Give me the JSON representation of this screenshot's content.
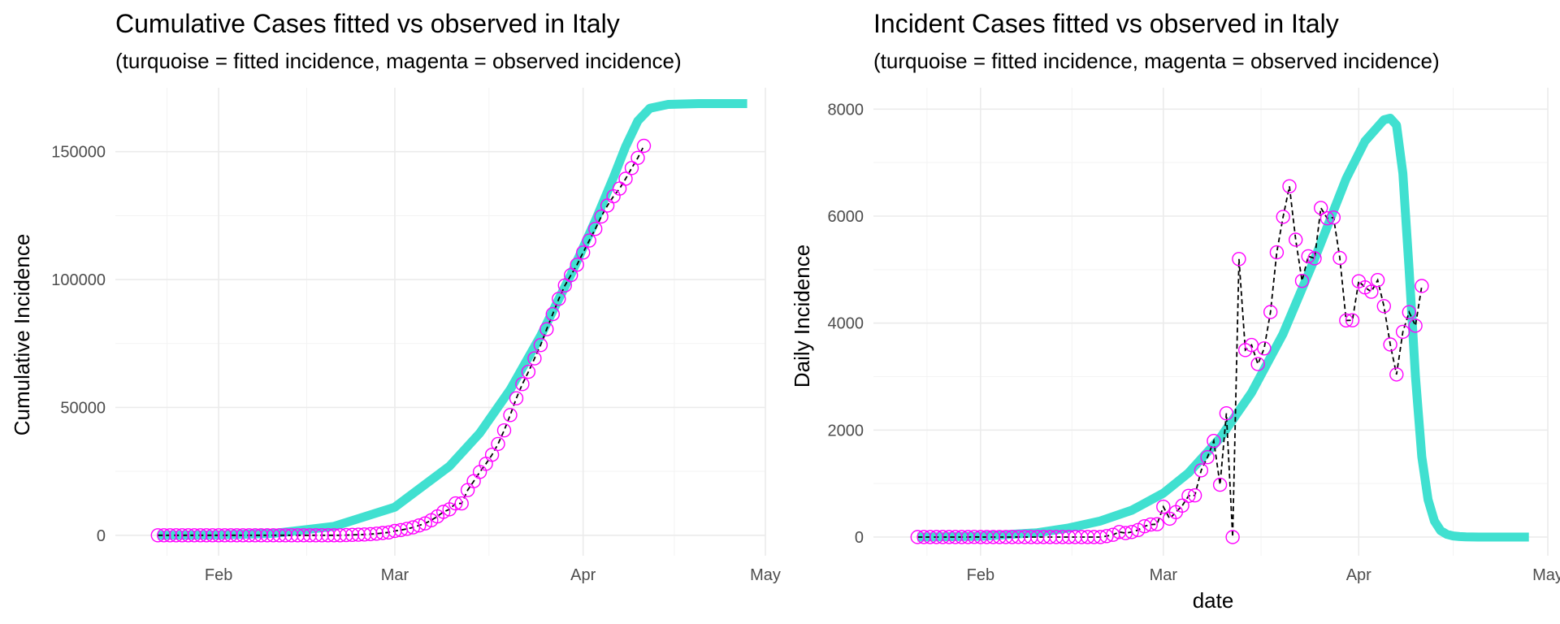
{
  "chart_data": [
    {
      "type": "line",
      "title": "Cumulative Cases fitted vs observed in Italy",
      "subtitle": "(turquoise = fitted incidence, magenta = observed incidence)",
      "xlabel": "",
      "ylabel": "Cumulative Incidence",
      "x_ticks": [
        "Feb",
        "Mar",
        "Apr",
        "May"
      ],
      "y_ticks": [
        "0",
        "50000",
        "100000",
        "150000"
      ],
      "ylim": [
        -8000,
        175000
      ],
      "xlim": [
        "2020-01-15",
        "2020-05-01"
      ],
      "grid": true,
      "colors": {
        "fitted": "#40e0d0",
        "observed": "#ff00ff",
        "connector": "#000000"
      },
      "series": [
        {
          "role": "fitted",
          "x": [
            "2020-01-22",
            "2020-02-01",
            "2020-02-10",
            "2020-02-20",
            "2020-03-01",
            "2020-03-10",
            "2020-03-15",
            "2020-03-20",
            "2020-03-25",
            "2020-03-30",
            "2020-04-03",
            "2020-04-06",
            "2020-04-08",
            "2020-04-10",
            "2020-04-12",
            "2020-04-15",
            "2020-04-20",
            "2020-04-28"
          ],
          "values": [
            0,
            120,
            700,
            3500,
            11000,
            27000,
            40000,
            57000,
            78000,
            102000,
            123000,
            140000,
            152000,
            162000,
            167000,
            168500,
            168800,
            168800
          ]
        },
        {
          "role": "observed",
          "x": [
            "2020-01-22",
            "2020-01-23",
            "2020-01-24",
            "2020-01-25",
            "2020-01-26",
            "2020-01-27",
            "2020-01-28",
            "2020-01-29",
            "2020-01-30",
            "2020-01-31",
            "2020-02-01",
            "2020-02-02",
            "2020-02-03",
            "2020-02-04",
            "2020-02-05",
            "2020-02-06",
            "2020-02-07",
            "2020-02-08",
            "2020-02-09",
            "2020-02-10",
            "2020-02-11",
            "2020-02-12",
            "2020-02-13",
            "2020-02-14",
            "2020-02-15",
            "2020-02-16",
            "2020-02-17",
            "2020-02-18",
            "2020-02-19",
            "2020-02-20",
            "2020-02-21",
            "2020-02-22",
            "2020-02-23",
            "2020-02-24",
            "2020-02-25",
            "2020-02-26",
            "2020-02-27",
            "2020-02-28",
            "2020-02-29",
            "2020-03-01",
            "2020-03-02",
            "2020-03-03",
            "2020-03-04",
            "2020-03-05",
            "2020-03-06",
            "2020-03-07",
            "2020-03-08",
            "2020-03-09",
            "2020-03-10",
            "2020-03-11",
            "2020-03-12",
            "2020-03-13",
            "2020-03-14",
            "2020-03-15",
            "2020-03-16",
            "2020-03-17",
            "2020-03-18",
            "2020-03-19",
            "2020-03-20",
            "2020-03-21",
            "2020-03-22",
            "2020-03-23",
            "2020-03-24",
            "2020-03-25",
            "2020-03-26",
            "2020-03-27",
            "2020-03-28",
            "2020-03-29",
            "2020-03-30",
            "2020-03-31",
            "2020-04-01",
            "2020-04-02",
            "2020-04-03",
            "2020-04-04",
            "2020-04-05",
            "2020-04-06",
            "2020-04-07",
            "2020-04-08",
            "2020-04-09",
            "2020-04-10",
            "2020-04-11"
          ],
          "values": [
            0,
            0,
            0,
            0,
            0,
            0,
            0,
            0,
            0,
            2,
            2,
            2,
            2,
            2,
            2,
            2,
            3,
            3,
            3,
            3,
            3,
            3,
            3,
            3,
            3,
            3,
            3,
            3,
            3,
            3,
            20,
            62,
            155,
            229,
            322,
            453,
            655,
            888,
            1128,
            1694,
            2036,
            2502,
            3089,
            3858,
            4636,
            5883,
            7375,
            9172,
            10149,
            12462,
            12462,
            17660,
            21157,
            24747,
            27980,
            31506,
            35713,
            41035,
            47021,
            53578,
            59138,
            63927,
            69176,
            74386,
            80589,
            86498,
            92472,
            97689,
            101739,
            105792,
            110574,
            115242,
            119827,
            124632,
            128948,
            132547,
            135586,
            139422,
            143626,
            147577,
            152271
          ]
        }
      ]
    },
    {
      "type": "line",
      "title": "Incident Cases fitted vs observed in Italy",
      "subtitle": "(turquoise = fitted incidence, magenta = observed incidence)",
      "xlabel": "date",
      "ylabel": "Daily Incidence",
      "x_ticks": [
        "Feb",
        "Mar",
        "Apr",
        "May"
      ],
      "y_ticks": [
        "0",
        "2000",
        "4000",
        "6000",
        "8000"
      ],
      "ylim": [
        -350,
        8400
      ],
      "xlim": [
        "2020-01-15",
        "2020-05-01"
      ],
      "grid": true,
      "colors": {
        "fitted": "#40e0d0",
        "observed": "#ff00ff",
        "connector": "#000000"
      },
      "series": [
        {
          "role": "fitted",
          "x": [
            "2020-01-22",
            "2020-02-01",
            "2020-02-10",
            "2020-02-15",
            "2020-02-20",
            "2020-02-25",
            "2020-03-01",
            "2020-03-05",
            "2020-03-10",
            "2020-03-15",
            "2020-03-20",
            "2020-03-25",
            "2020-03-30",
            "2020-04-02",
            "2020-04-05",
            "2020-04-06",
            "2020-04-07",
            "2020-04-08",
            "2020-04-09",
            "2020-04-10",
            "2020-04-11",
            "2020-04-12",
            "2020-04-13",
            "2020-04-14",
            "2020-04-15",
            "2020-04-16",
            "2020-04-17",
            "2020-04-18",
            "2020-04-19",
            "2020-04-20",
            "2020-04-22",
            "2020-04-28"
          ],
          "values": [
            0,
            15,
            80,
            170,
            300,
            500,
            820,
            1200,
            1850,
            2700,
            3800,
            5200,
            6700,
            7400,
            7800,
            7830,
            7700,
            6800,
            5000,
            3000,
            1500,
            700,
            300,
            120,
            50,
            20,
            8,
            3,
            1,
            0,
            0,
            0
          ]
        },
        {
          "role": "observed",
          "x": [
            "2020-01-22",
            "2020-01-23",
            "2020-01-24",
            "2020-01-25",
            "2020-01-26",
            "2020-01-27",
            "2020-01-28",
            "2020-01-29",
            "2020-01-30",
            "2020-01-31",
            "2020-02-01",
            "2020-02-02",
            "2020-02-03",
            "2020-02-04",
            "2020-02-05",
            "2020-02-06",
            "2020-02-07",
            "2020-02-08",
            "2020-02-09",
            "2020-02-10",
            "2020-02-11",
            "2020-02-12",
            "2020-02-13",
            "2020-02-14",
            "2020-02-15",
            "2020-02-16",
            "2020-02-17",
            "2020-02-18",
            "2020-02-19",
            "2020-02-20",
            "2020-02-21",
            "2020-02-22",
            "2020-02-23",
            "2020-02-24",
            "2020-02-25",
            "2020-02-26",
            "2020-02-27",
            "2020-02-28",
            "2020-02-29",
            "2020-03-01",
            "2020-03-02",
            "2020-03-03",
            "2020-03-04",
            "2020-03-05",
            "2020-03-06",
            "2020-03-07",
            "2020-03-08",
            "2020-03-09",
            "2020-03-10",
            "2020-03-11",
            "2020-03-12",
            "2020-03-13",
            "2020-03-14",
            "2020-03-15",
            "2020-03-16",
            "2020-03-17",
            "2020-03-18",
            "2020-03-19",
            "2020-03-20",
            "2020-03-21",
            "2020-03-22",
            "2020-03-23",
            "2020-03-24",
            "2020-03-25",
            "2020-03-26",
            "2020-03-27",
            "2020-03-28",
            "2020-03-29",
            "2020-03-30",
            "2020-03-31",
            "2020-04-01",
            "2020-04-02",
            "2020-04-03",
            "2020-04-04",
            "2020-04-05",
            "2020-04-06",
            "2020-04-07",
            "2020-04-08",
            "2020-04-09",
            "2020-04-10",
            "2020-04-11"
          ],
          "values": [
            0,
            0,
            0,
            0,
            0,
            0,
            0,
            0,
            0,
            2,
            0,
            0,
            0,
            0,
            0,
            0,
            1,
            0,
            0,
            0,
            0,
            0,
            0,
            0,
            0,
            0,
            0,
            0,
            0,
            0,
            17,
            42,
            93,
            74,
            93,
            131,
            202,
            233,
            240,
            566,
            342,
            466,
            587,
            769,
            778,
            1247,
            1492,
            1797,
            977,
            2313,
            0,
            5198,
            3497,
            3590,
            3233,
            3526,
            4207,
            5322,
            5986,
            6557,
            5560,
            4789,
            5249,
            5210,
            6153,
            5959,
            5974,
            5217,
            4050,
            4053,
            4782,
            4668,
            4585,
            4805,
            4316,
            3599,
            3039,
            3836,
            4204,
            3951,
            4694
          ]
        }
      ]
    }
  ]
}
